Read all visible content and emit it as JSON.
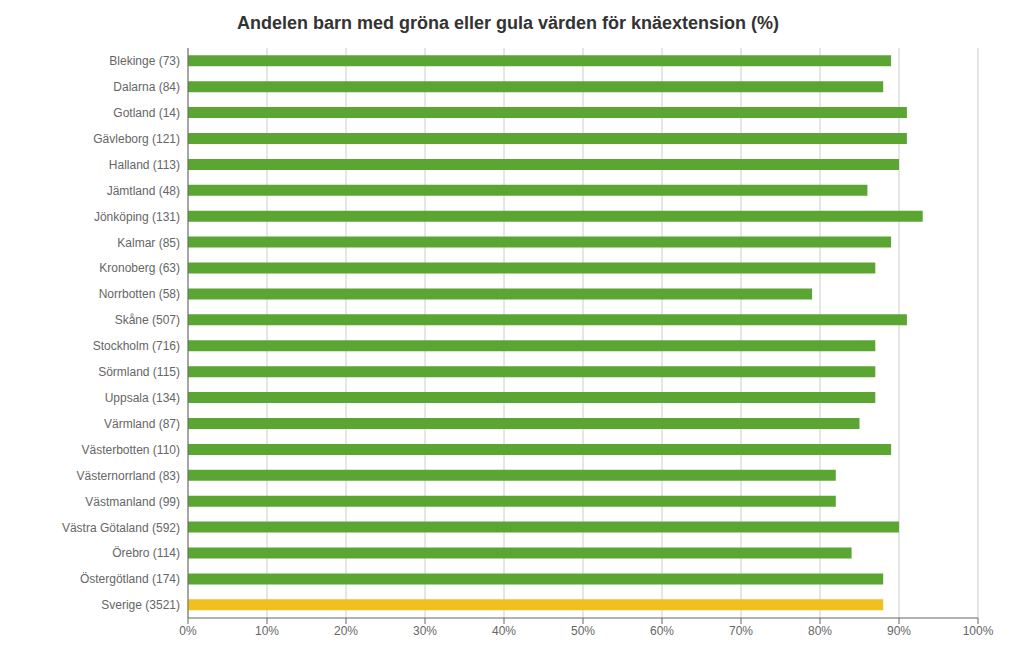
{
  "chart_data": {
    "type": "bar",
    "orientation": "horizontal",
    "title": "Andelen barn med gröna eller gula värden för knäextension (%)",
    "categories": [
      "Blekinge (73)",
      "Dalarna (84)",
      "Gotland (14)",
      "Gävleborg (121)",
      "Halland (113)",
      "Jämtland (48)",
      "Jönköping (131)",
      "Kalmar (85)",
      "Kronoberg (63)",
      "Norrbotten (58)",
      "Skåne (507)",
      "Stockholm (716)",
      "Sörmland (115)",
      "Uppsala (134)",
      "Värmland (87)",
      "Västerbotten (110)",
      "Västernorrland (83)",
      "Västmanland (99)",
      "Västra Götaland (592)",
      "Örebro (114)",
      "Östergötland (174)",
      "Sverige (3521)"
    ],
    "values": [
      89,
      88,
      91,
      91,
      90,
      86,
      93,
      89,
      87,
      79,
      91,
      87,
      87,
      87,
      85,
      89,
      82,
      82,
      90,
      84,
      88,
      88
    ],
    "colors": [
      "#5BA632",
      "#5BA632",
      "#5BA632",
      "#5BA632",
      "#5BA632",
      "#5BA632",
      "#5BA632",
      "#5BA632",
      "#5BA632",
      "#5BA632",
      "#5BA632",
      "#5BA632",
      "#5BA632",
      "#5BA632",
      "#5BA632",
      "#5BA632",
      "#5BA632",
      "#5BA632",
      "#5BA632",
      "#5BA632",
      "#5BA632",
      "#F0C020"
    ],
    "xlim": [
      0,
      100
    ],
    "xticks": [
      {
        "value": 0,
        "label": "0%"
      },
      {
        "value": 10,
        "label": "10%"
      },
      {
        "value": 20,
        "label": "20%"
      },
      {
        "value": 30,
        "label": "30%"
      },
      {
        "value": 40,
        "label": "40%"
      },
      {
        "value": 50,
        "label": "50%"
      },
      {
        "value": 60,
        "label": "60%"
      },
      {
        "value": 70,
        "label": "70%"
      },
      {
        "value": 80,
        "label": "80%"
      },
      {
        "value": 90,
        "label": "90%"
      },
      {
        "value": 100,
        "label": "100%"
      }
    ],
    "grid": true
  }
}
